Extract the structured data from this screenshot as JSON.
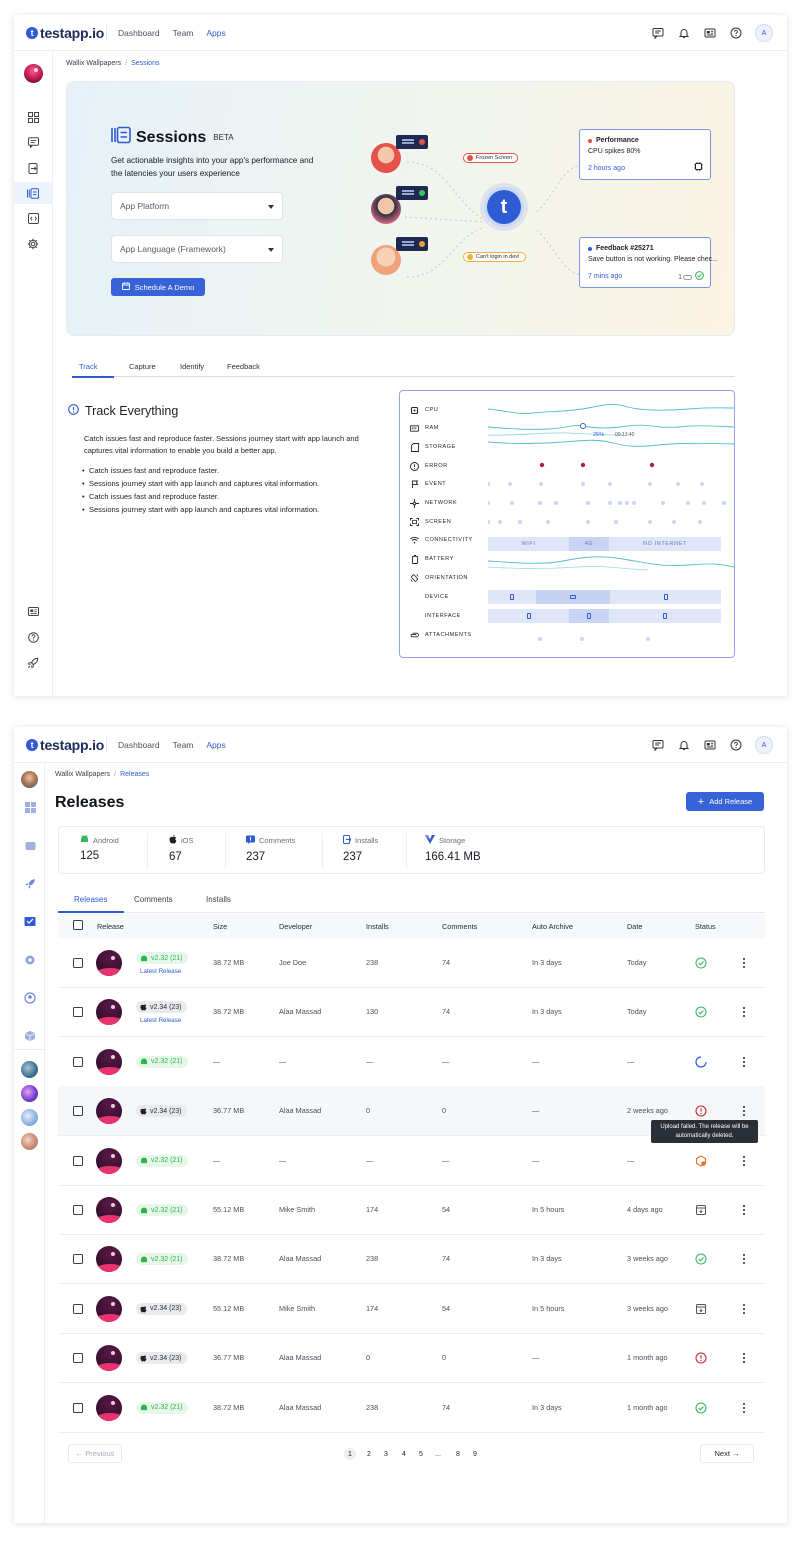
{
  "brand": {
    "name": "testapp.io",
    "accent": "#2f5bd3"
  },
  "topnav": {
    "items": [
      "Dashboard",
      "Team",
      "Apps"
    ],
    "active": "Apps",
    "avatar_initial": "A"
  },
  "sessions_page": {
    "breadcrumb": {
      "parent": "Wallix Wallpapers",
      "current": "Sessions"
    },
    "hero": {
      "title": "Sessions",
      "badge": "BETA",
      "description": "Get actionable insights into your app's performance and the latencies your users experience",
      "platform_placeholder": "App Platform",
      "language_placeholder": "App Language (Framework)",
      "cta": "Schedule A Demo",
      "tag_frozen": "Frozen Screen",
      "tag_login": "Can't login in dev!",
      "card_perf": {
        "title": "Performance",
        "text": "CPU spikes 80%",
        "time": "2 hours ago"
      },
      "card_feedback": {
        "title": "Feedback #25271",
        "text": "Save button is not working. Please chec...",
        "time": "7 mins ago",
        "count": "1"
      }
    },
    "tabs": [
      "Track",
      "Capture",
      "Identify",
      "Feedback"
    ],
    "active_tab": "Track",
    "track": {
      "title": "Track Everything",
      "paragraph": "Catch issues fast and reproduce faster. Sessions journey start with app launch and captures vital information to enable you build a better app.",
      "bullets": [
        "Catch issues fast and reproduce faster.",
        "Sessions journey start with app launch and captures vital information.",
        "Catch issues fast and reproduce faster.",
        "Sessions journey start with app launch and captures vital information."
      ]
    },
    "metrics": {
      "rows": [
        "CPU",
        "RAM",
        "STORAGE",
        "ERROR",
        "EVENT",
        "NETWORK",
        "SCREEN",
        "CONNECTIVITY",
        "BATTERY",
        "ORIENTATION",
        "DEVICE",
        "INTERFACE",
        "ATTACHMENTS"
      ],
      "ram_percent": "25%",
      "ram_time": "00:13:40",
      "connectivity": [
        "WIFI",
        "4G",
        "NO INTERNET"
      ]
    }
  },
  "releases_page": {
    "breadcrumb": {
      "parent": "Wallix Wallpapers",
      "current": "Releases"
    },
    "title": "Releases",
    "add_button": "Add Release",
    "stats": [
      {
        "label": "Android",
        "value": "125",
        "icon": "android-icon"
      },
      {
        "label": "iOS",
        "value": "67",
        "icon": "apple-icon"
      },
      {
        "label": "Comments",
        "value": "237",
        "icon": "comment-icon"
      },
      {
        "label": "Installs",
        "value": "237",
        "icon": "install-icon"
      },
      {
        "label": "Storage",
        "value": "166.41 MB",
        "icon": "storage-icon"
      }
    ],
    "tabs": [
      "Releases",
      "Comments",
      "Installs"
    ],
    "active_tab": "Releases",
    "columns": [
      "Release",
      "Size",
      "Developer",
      "Installs",
      "Comments",
      "Auto Archive",
      "Date",
      "Status"
    ],
    "rows": [
      {
        "platform": "android",
        "version": "v2.32 (21)",
        "latest": "Latest Release",
        "size": "38.72 MB",
        "developer": "Joe Doe",
        "installs": "238",
        "comments": "74",
        "archive": "In 3 days",
        "date": "Today",
        "status": "success"
      },
      {
        "platform": "ios",
        "version": "v2.34 (23)",
        "latest": "Latest Release",
        "size": "38.72 MB",
        "developer": "Alaa Massad",
        "installs": "130",
        "comments": "74",
        "archive": "In 3 days",
        "date": "Today",
        "status": "success"
      },
      {
        "platform": "android",
        "version": "v2.32 (21)",
        "latest": "",
        "size": "—",
        "developer": "—",
        "installs": "—",
        "comments": "—",
        "archive": "—",
        "date": "—",
        "status": "processing"
      },
      {
        "platform": "ios",
        "version": "v2.34 (23)",
        "latest": "",
        "size": "36.77 MB",
        "developer": "Alaa Massad",
        "installs": "0",
        "comments": "0",
        "archive": "—",
        "date": "2 weeks ago",
        "status": "failed"
      },
      {
        "platform": "android",
        "version": "v2.32 (21)",
        "latest": "",
        "size": "—",
        "developer": "—",
        "installs": "—",
        "comments": "—",
        "archive": "—",
        "date": "—",
        "status": "warning"
      },
      {
        "platform": "android",
        "version": "v2.32 (21)",
        "latest": "",
        "size": "55.12 MB",
        "developer": "Mike Smith",
        "installs": "174",
        "comments": "54",
        "archive": "In 5 hours",
        "date": "4 days ago",
        "status": "archived"
      },
      {
        "platform": "android",
        "version": "v2.32 (21)",
        "latest": "",
        "size": "38.72 MB",
        "developer": "Alaa Massad",
        "installs": "238",
        "comments": "74",
        "archive": "In 3 days",
        "date": "3 weeks ago",
        "status": "success"
      },
      {
        "platform": "ios",
        "version": "v2.34 (23)",
        "latest": "",
        "size": "55.12 MB",
        "developer": "Mike Smith",
        "installs": "174",
        "comments": "54",
        "archive": "In 5 hours",
        "date": "3 weeks ago",
        "status": "archived"
      },
      {
        "platform": "ios",
        "version": "v2.34 (23)",
        "latest": "",
        "size": "36.77 MB",
        "developer": "Alaa Massad",
        "installs": "0",
        "comments": "0",
        "archive": "—",
        "date": "1 month ago",
        "status": "failed"
      },
      {
        "platform": "android",
        "version": "v2.32 (21)",
        "latest": "",
        "size": "38.72 MB",
        "developer": "Alaa Massad",
        "installs": "238",
        "comments": "74",
        "archive": "In 3 days",
        "date": "1 month ago",
        "status": "success"
      }
    ],
    "tooltip": "Upload failed. The release will be automatically deleted.",
    "pagination": {
      "previous": "← Previous",
      "next": "Next →",
      "pages": [
        "1",
        "2",
        "3",
        "4",
        "5",
        "...",
        "8",
        "9"
      ],
      "current": "1"
    }
  }
}
